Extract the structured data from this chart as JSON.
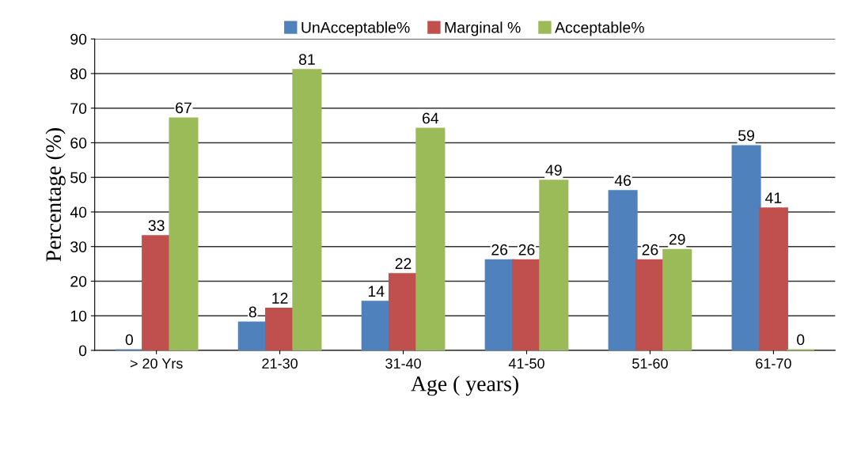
{
  "chart_data": {
    "type": "bar",
    "xlabel": "Age ( years)",
    "ylabel": "Percentage (%)",
    "categories": [
      "> 20 Yrs",
      "21-30",
      "31-40",
      "41-50",
      "51-60",
      "61-70"
    ],
    "series": [
      {
        "name": "UnAcceptable%",
        "color": "#4f81bd",
        "values": [
          0,
          8,
          14,
          26,
          46,
          59
        ]
      },
      {
        "name": "Marginal %",
        "color": "#c0504d",
        "values": [
          33,
          12,
          22,
          26,
          26,
          41
        ]
      },
      {
        "name": "Acceptable%",
        "color": "#9bbb59",
        "values": [
          67,
          81,
          64,
          49,
          29,
          0
        ]
      }
    ],
    "ylim": [
      0,
      90
    ],
    "yticks": [
      0,
      10,
      20,
      30,
      40,
      50,
      60,
      70,
      80,
      90
    ],
    "grid": "y",
    "legend": "top",
    "data_labels": true
  }
}
